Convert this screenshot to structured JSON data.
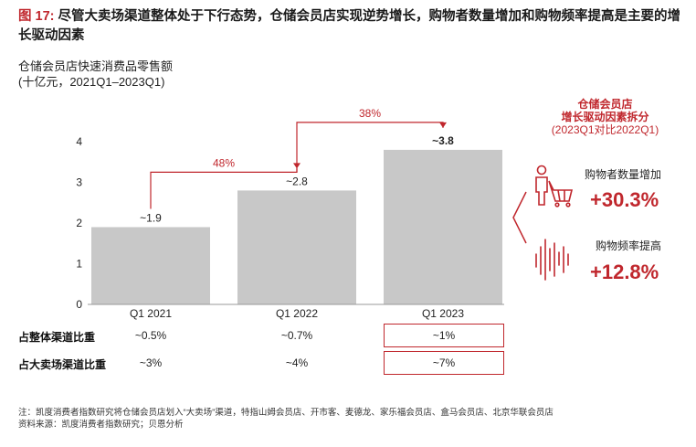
{
  "header": {
    "figure_label": "图 17:",
    "title": "尽管大卖场渠道整体处于下行态势，仓储会员店实现逆势增长，购物者数量增加和购物频率提高是主要的增长驱动因素"
  },
  "chart_data": {
    "type": "bar",
    "subtitle_line1": "仓储会员店快速消费品零售额",
    "subtitle_line2": "(十亿元，2021Q1–2023Q1)",
    "categories": [
      "Q1 2021",
      "Q1 2022",
      "Q1 2023"
    ],
    "values": [
      1.9,
      2.8,
      3.8
    ],
    "value_labels": [
      "~1.9",
      "~2.8",
      "~3.8"
    ],
    "ylim": [
      0,
      4
    ],
    "yticks": [
      "0",
      "1",
      "2",
      "3",
      "4"
    ],
    "bar_color": "#c8c8c8",
    "growth_arrows": [
      {
        "from": 0,
        "to": 1,
        "label": "48%"
      },
      {
        "from": 1,
        "to": 2,
        "label": "38%"
      }
    ],
    "accent_color": "#c0272d"
  },
  "table": {
    "rows": [
      {
        "label": "占整体渠道比重",
        "values": [
          "~0.5%",
          "~0.7%",
          "~1%"
        ]
      },
      {
        "label": "占大卖场渠道比重",
        "values": [
          "~3%",
          "~4%",
          "~7%"
        ]
      }
    ]
  },
  "drivers": {
    "title_line1": "仓储会员店",
    "title_line2": "增长驱动因素拆分",
    "title_line3": "(2023Q1对比2022Q1)",
    "items": [
      {
        "label": "购物者数量增加",
        "value": "+30.3%",
        "icon": "shopper-cart-icon"
      },
      {
        "label": "购物频率提高",
        "value": "+12.8%",
        "icon": "frequency-bars-icon"
      }
    ]
  },
  "footnotes": {
    "note": "注：凯度消费者指数研究将仓储会员店划入“大卖场”渠道，特指山姆会员店、开市客、麦德龙、家乐福会员店、盒马会员店、北京华联会员店",
    "source": "资料来源：凯度消费者指数研究；贝恩分析"
  }
}
